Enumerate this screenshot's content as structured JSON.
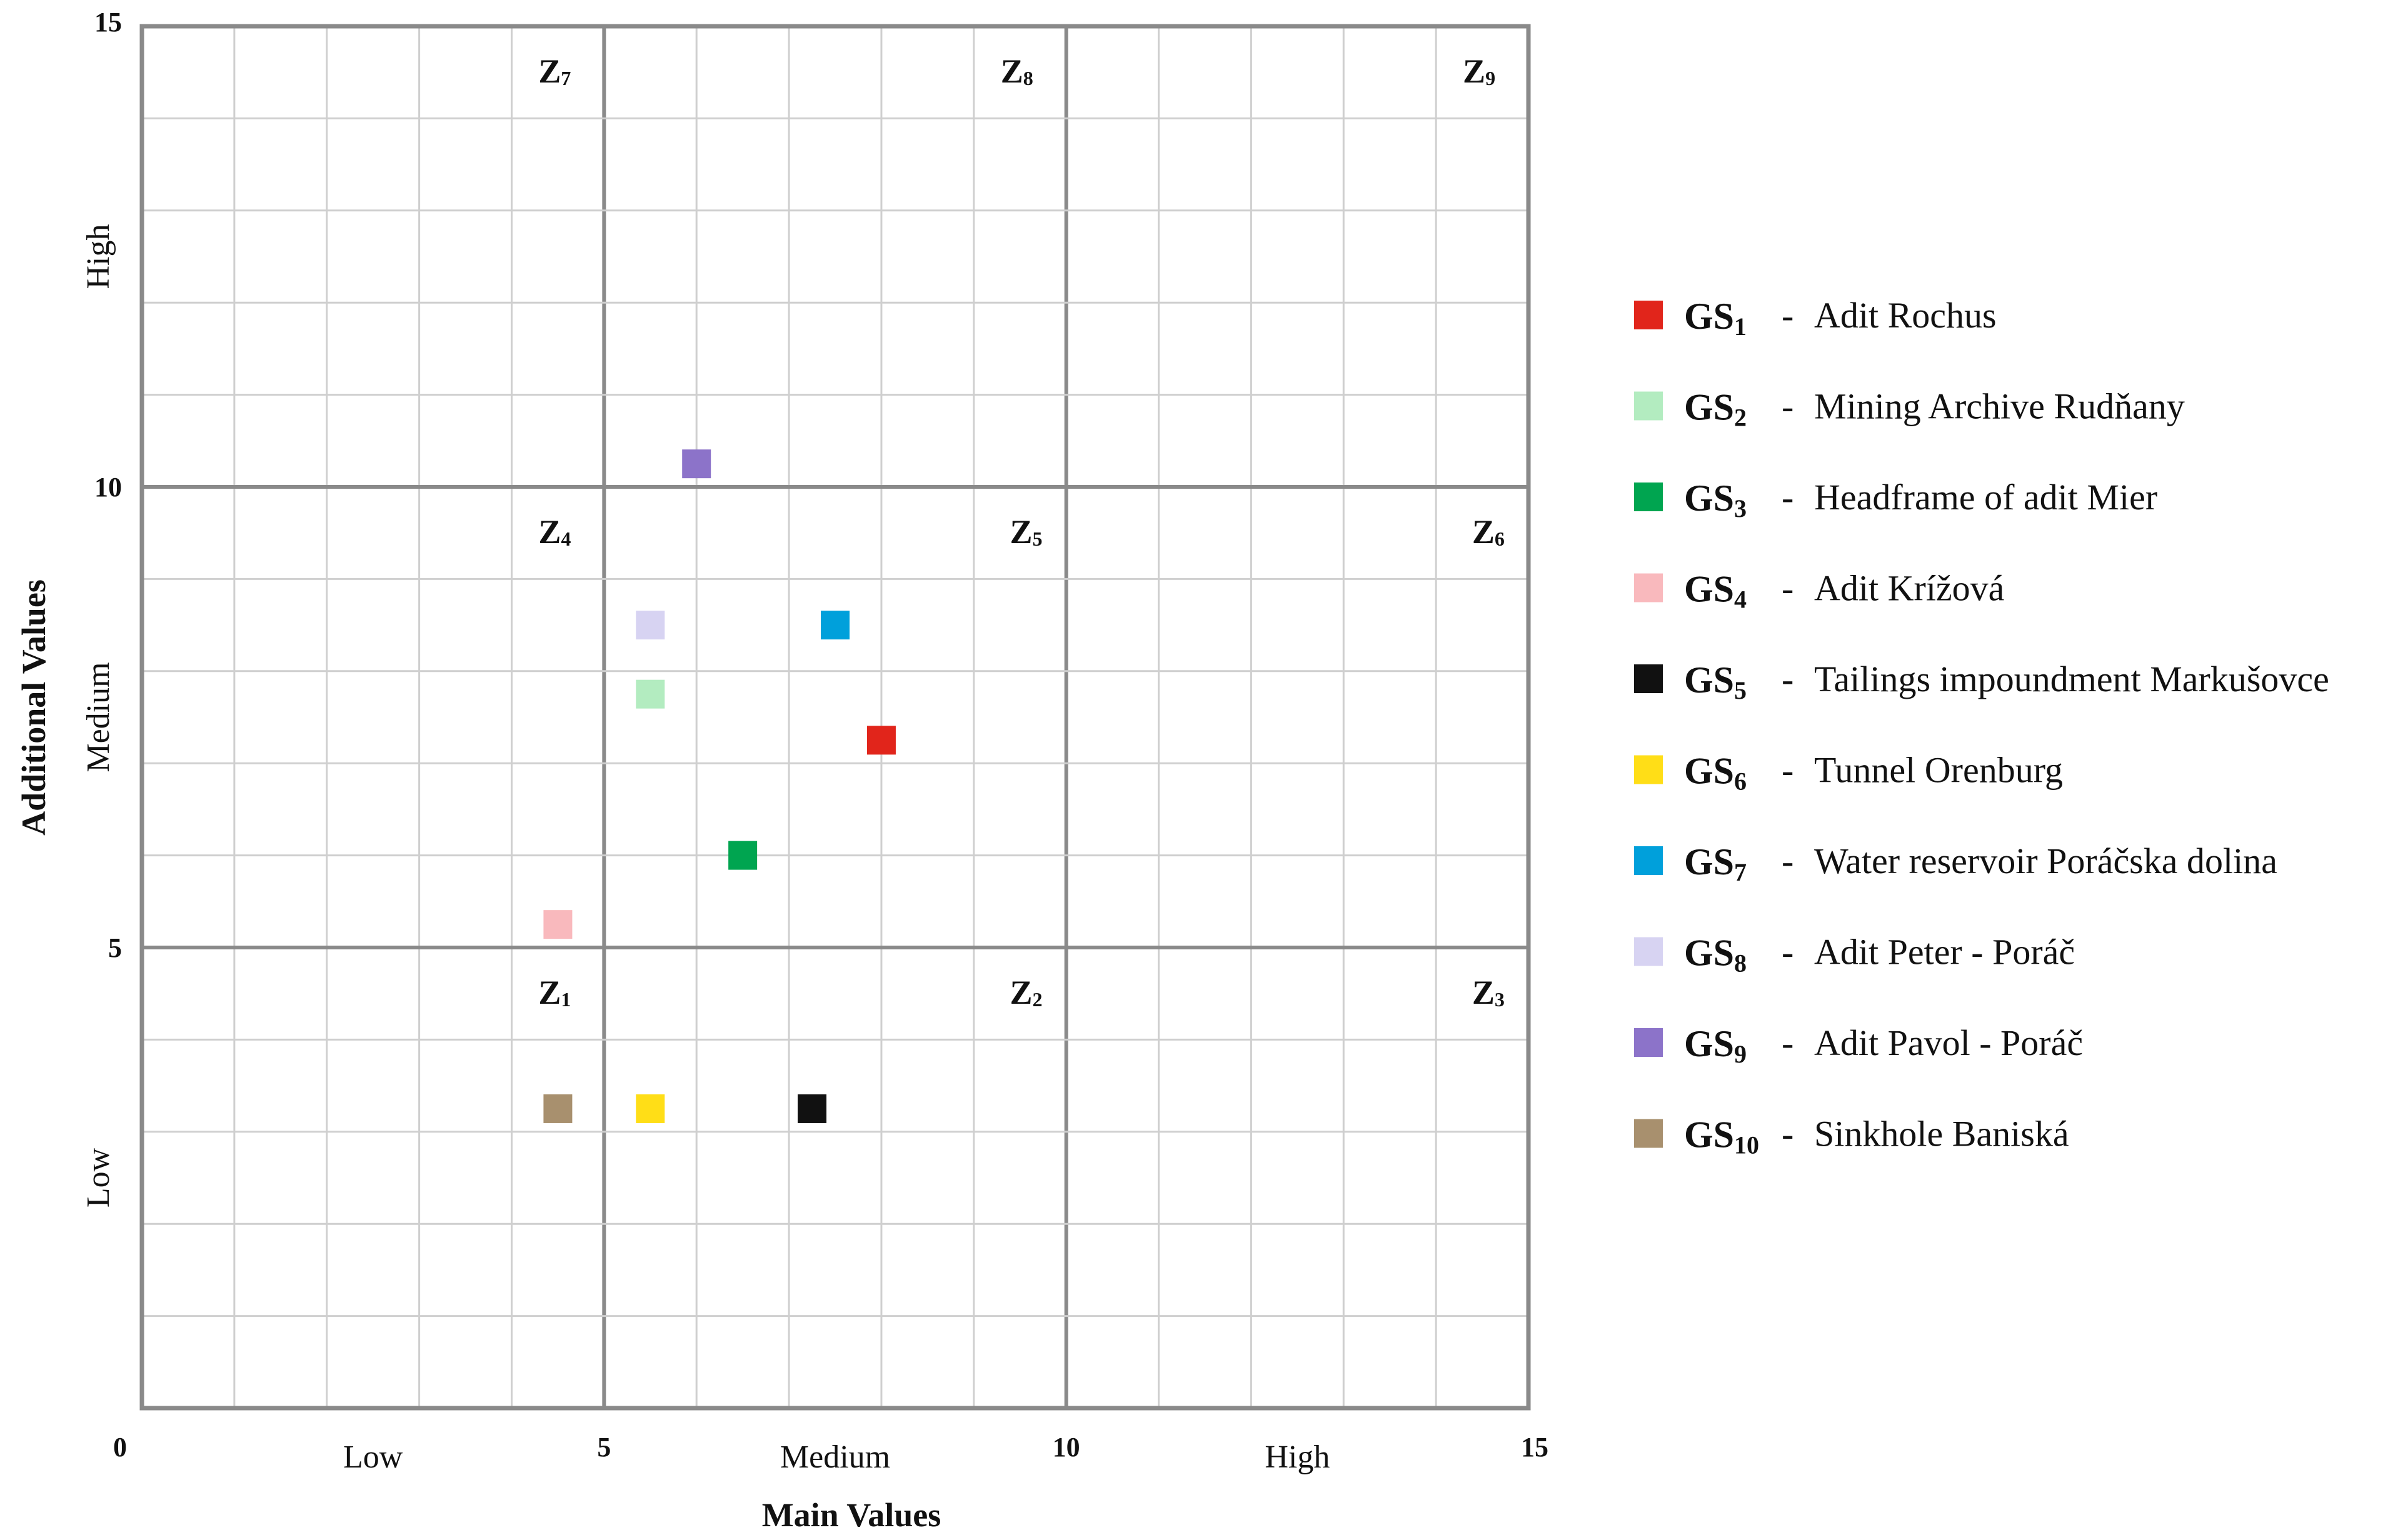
{
  "chart_data": {
    "type": "scatter",
    "title": "",
    "xlabel": "Main Values",
    "ylabel": "Additional Values",
    "xlim": [
      0,
      15
    ],
    "ylim": [
      0,
      15
    ],
    "x_ticks": [
      "0",
      "5",
      "10",
      "15"
    ],
    "y_ticks": [
      "5",
      "10",
      "15"
    ],
    "x_bands": [
      "Low",
      "Medium",
      "High"
    ],
    "y_bands": [
      "Low",
      "Medium",
      "High"
    ],
    "grid": true,
    "legend_position": "right",
    "zones": [
      {
        "base": "Z",
        "sub": "1",
        "x": 4.5,
        "y": 5
      },
      {
        "base": "Z",
        "sub": "2",
        "x": 9.6,
        "y": 5
      },
      {
        "base": "Z",
        "sub": "3",
        "x": 14.6,
        "y": 5
      },
      {
        "base": "Z",
        "sub": "4",
        "x": 4.5,
        "y": 10
      },
      {
        "base": "Z",
        "sub": "5",
        "x": 9.6,
        "y": 10
      },
      {
        "base": "Z",
        "sub": "6",
        "x": 14.6,
        "y": 10
      },
      {
        "base": "Z",
        "sub": "7",
        "x": 4.5,
        "y": 15
      },
      {
        "base": "Z",
        "sub": "8",
        "x": 9.5,
        "y": 15
      },
      {
        "base": "Z",
        "sub": "9",
        "x": 14.5,
        "y": 15
      }
    ],
    "points": [
      {
        "code": "GS",
        "sub": "1",
        "name": "Adit Rochus",
        "x": 8.0,
        "y": 7.25,
        "color": "#e1251b"
      },
      {
        "code": "GS",
        "sub": "2",
        "name": "Mining Archive Rudňany",
        "x": 5.5,
        "y": 7.75,
        "color": "#b3ecc0"
      },
      {
        "code": "GS",
        "sub": "3",
        "name": "Headframe of adit Mier",
        "x": 6.5,
        "y": 6.0,
        "color": "#00a550"
      },
      {
        "code": "GS",
        "sub": "4",
        "name": "Adit Krížová",
        "x": 4.5,
        "y": 5.25,
        "color": "#f9b9bd"
      },
      {
        "code": "GS",
        "sub": "5",
        "name": "Tailings impoundment  Markušovce",
        "x": 7.25,
        "y": 3.25,
        "color": "#111111"
      },
      {
        "code": "GS",
        "sub": "6",
        "name": "Tunnel Orenburg",
        "x": 5.5,
        "y": 3.25,
        "color": "#ffde17"
      },
      {
        "code": "GS",
        "sub": "7",
        "name": "Water reservoir Poráčska dolina",
        "x": 7.5,
        "y": 8.5,
        "color": "#00a0db"
      },
      {
        "code": "GS",
        "sub": "8",
        "name": "Adit Peter - Poráč",
        "x": 5.5,
        "y": 8.5,
        "color": "#d7d3f2"
      },
      {
        "code": "GS",
        "sub": "9",
        "name": "Adit Pavol - Poráč",
        "x": 6.0,
        "y": 10.25,
        "color": "#8c73c9"
      },
      {
        "code": "GS",
        "sub": "10",
        "name": "Sinkhole Baniská",
        "x": 4.5,
        "y": 3.25,
        "color": "#a8906e"
      }
    ]
  }
}
